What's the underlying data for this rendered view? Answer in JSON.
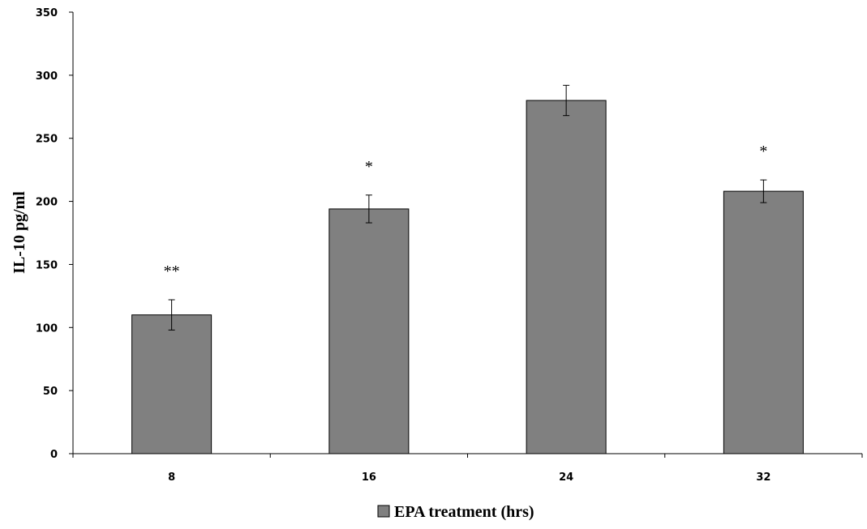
{
  "chart_data": {
    "type": "bar",
    "title": "",
    "xlabel": "",
    "ylabel": "IL-10 pg/ml",
    "categories": [
      "8",
      "16",
      "24",
      "32"
    ],
    "series": [
      {
        "name": "EPA treatment (hrs)",
        "values": [
          110,
          194,
          280,
          208
        ],
        "errors": [
          12,
          11,
          12,
          9
        ],
        "annotations": [
          "**",
          "*",
          "",
          "*"
        ]
      }
    ],
    "ylim": [
      0,
      350
    ],
    "yticks": [
      "0",
      "50",
      "100",
      "150",
      "200",
      "250",
      "300",
      "350"
    ],
    "grid": false,
    "legend": "bottom",
    "colors": {
      "bar": "#808080",
      "bar_edge": "#000000",
      "axis": "#000000"
    }
  }
}
